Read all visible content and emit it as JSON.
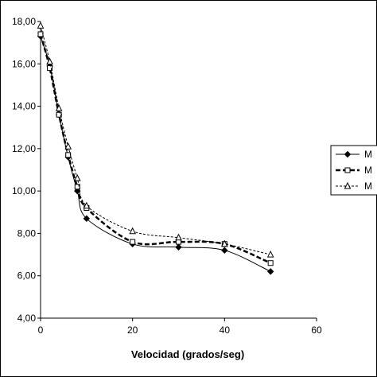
{
  "chart_data": {
    "type": "line",
    "title": "",
    "xlabel": "Velocidad (grados/seg)",
    "ylabel": "",
    "xlim": [
      0,
      60
    ],
    "ylim": [
      4,
      18
    ],
    "x_ticks": [
      "0",
      "20",
      "40",
      "60"
    ],
    "y_ticks": [
      "4,00",
      "6,00",
      "8,00",
      "10,00",
      "12,00",
      "14,00",
      "16,00",
      "18,00"
    ],
    "grid": false,
    "legend_position": "right",
    "series": [
      {
        "name": "M",
        "marker": "diamond-filled",
        "line": "solid",
        "x": [
          0,
          2,
          4,
          6,
          8,
          10,
          20,
          30,
          40,
          50
        ],
        "y": [
          17.3,
          15.9,
          13.6,
          11.6,
          10.0,
          8.7,
          7.5,
          7.35,
          7.2,
          6.2
        ]
      },
      {
        "name": "M",
        "marker": "square-open",
        "line": "dashed-bold",
        "x": [
          0,
          2,
          4,
          6,
          8,
          10,
          20,
          30,
          40,
          50
        ],
        "y": [
          17.4,
          15.8,
          13.6,
          11.7,
          10.2,
          9.2,
          7.6,
          7.6,
          7.5,
          6.6
        ]
      },
      {
        "name": "M",
        "marker": "triangle-open",
        "line": "dashed-thin",
        "x": [
          0,
          2,
          4,
          6,
          8,
          10,
          20,
          30,
          40,
          50
        ],
        "y": [
          17.8,
          16.1,
          13.9,
          12.1,
          10.6,
          9.3,
          8.1,
          7.8,
          7.5,
          7.0
        ]
      }
    ]
  }
}
